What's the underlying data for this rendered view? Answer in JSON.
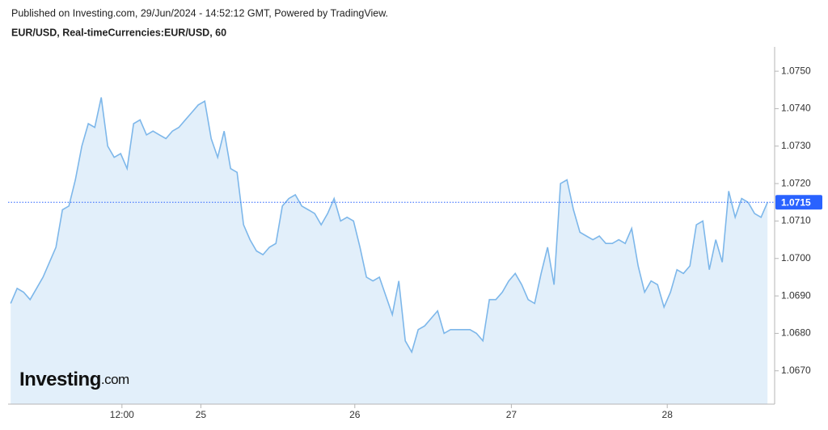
{
  "chart_data": {
    "type": "area",
    "subtitle": "Published on Investing.com, 29/Jun/2024 - 14:52:12 GMT, Powered by TradingView.",
    "title": "EUR/USD, Real-timeCurrencies:EUR/USD, 60",
    "logo": {
      "main": "Investing",
      "suffix": ".com"
    },
    "series": [
      {
        "name": "EUR/USD",
        "color": "#7db7ea",
        "fill": "#e2effa",
        "values": [
          1.0688,
          1.0692,
          1.0691,
          1.0689,
          1.0692,
          1.0695,
          1.0699,
          1.0703,
          1.0713,
          1.0714,
          1.0721,
          1.073,
          1.0736,
          1.0735,
          1.0743,
          1.073,
          1.0727,
          1.0728,
          1.0724,
          1.0736,
          1.0737,
          1.0733,
          1.0734,
          1.0733,
          1.0732,
          1.0734,
          1.0735,
          1.0737,
          1.0739,
          1.0741,
          1.0742,
          1.0732,
          1.0727,
          1.0734,
          1.0724,
          1.0723,
          1.0709,
          1.0705,
          1.0702,
          1.0701,
          1.0703,
          1.0704,
          1.0714,
          1.0716,
          1.0717,
          1.0714,
          1.0713,
          1.0712,
          1.0709,
          1.0712,
          1.0716,
          1.071,
          1.0711,
          1.071,
          1.0703,
          1.0695,
          1.0694,
          1.0695,
          1.069,
          1.0685,
          1.0694,
          1.0678,
          1.0675,
          1.0681,
          1.0682,
          1.0684,
          1.0686,
          1.068,
          1.0681,
          1.0681,
          1.0681,
          1.0681,
          1.068,
          1.0678,
          1.0689,
          1.0689,
          1.0691,
          1.0694,
          1.0696,
          1.0693,
          1.0689,
          1.0688,
          1.0696,
          1.0703,
          1.0693,
          1.072,
          1.0721,
          1.0713,
          1.0707,
          1.0706,
          1.0705,
          1.0706,
          1.0704,
          1.0704,
          1.0705,
          1.0704,
          1.0708,
          1.0698,
          1.0691,
          1.0694,
          1.0693,
          1.0687,
          1.0691,
          1.0697,
          1.0696,
          1.0698,
          1.0709,
          1.071,
          1.0697,
          1.0705,
          1.0699,
          1.0718,
          1.0711,
          1.0716,
          1.0715,
          1.0712,
          1.0711,
          1.0715
        ]
      }
    ],
    "last_price": 1.0715,
    "last_price_color": "#2962ff",
    "xlim": [
      -0.4,
      118.1
    ],
    "xticks": [
      {
        "value": 17.2,
        "label": "12:00"
      },
      {
        "value": 29.4,
        "label": "25"
      },
      {
        "value": 53.2,
        "label": "26"
      },
      {
        "value": 77.4,
        "label": "27"
      },
      {
        "value": 101.5,
        "label": "28"
      }
    ],
    "ylim": [
      1.06611,
      1.07565
    ],
    "yticks": [
      {
        "value": 1.075,
        "label": "1.0750"
      },
      {
        "value": 1.074,
        "label": "1.0740"
      },
      {
        "value": 1.073,
        "label": "1.0730"
      },
      {
        "value": 1.072,
        "label": "1.0720"
      },
      {
        "value": 1.071,
        "label": "1.0710"
      },
      {
        "value": 1.07,
        "label": "1.0700"
      },
      {
        "value": 1.069,
        "label": "1.0690"
      },
      {
        "value": 1.068,
        "label": "1.0680"
      },
      {
        "value": 1.067,
        "label": "1.0670"
      }
    ]
  }
}
